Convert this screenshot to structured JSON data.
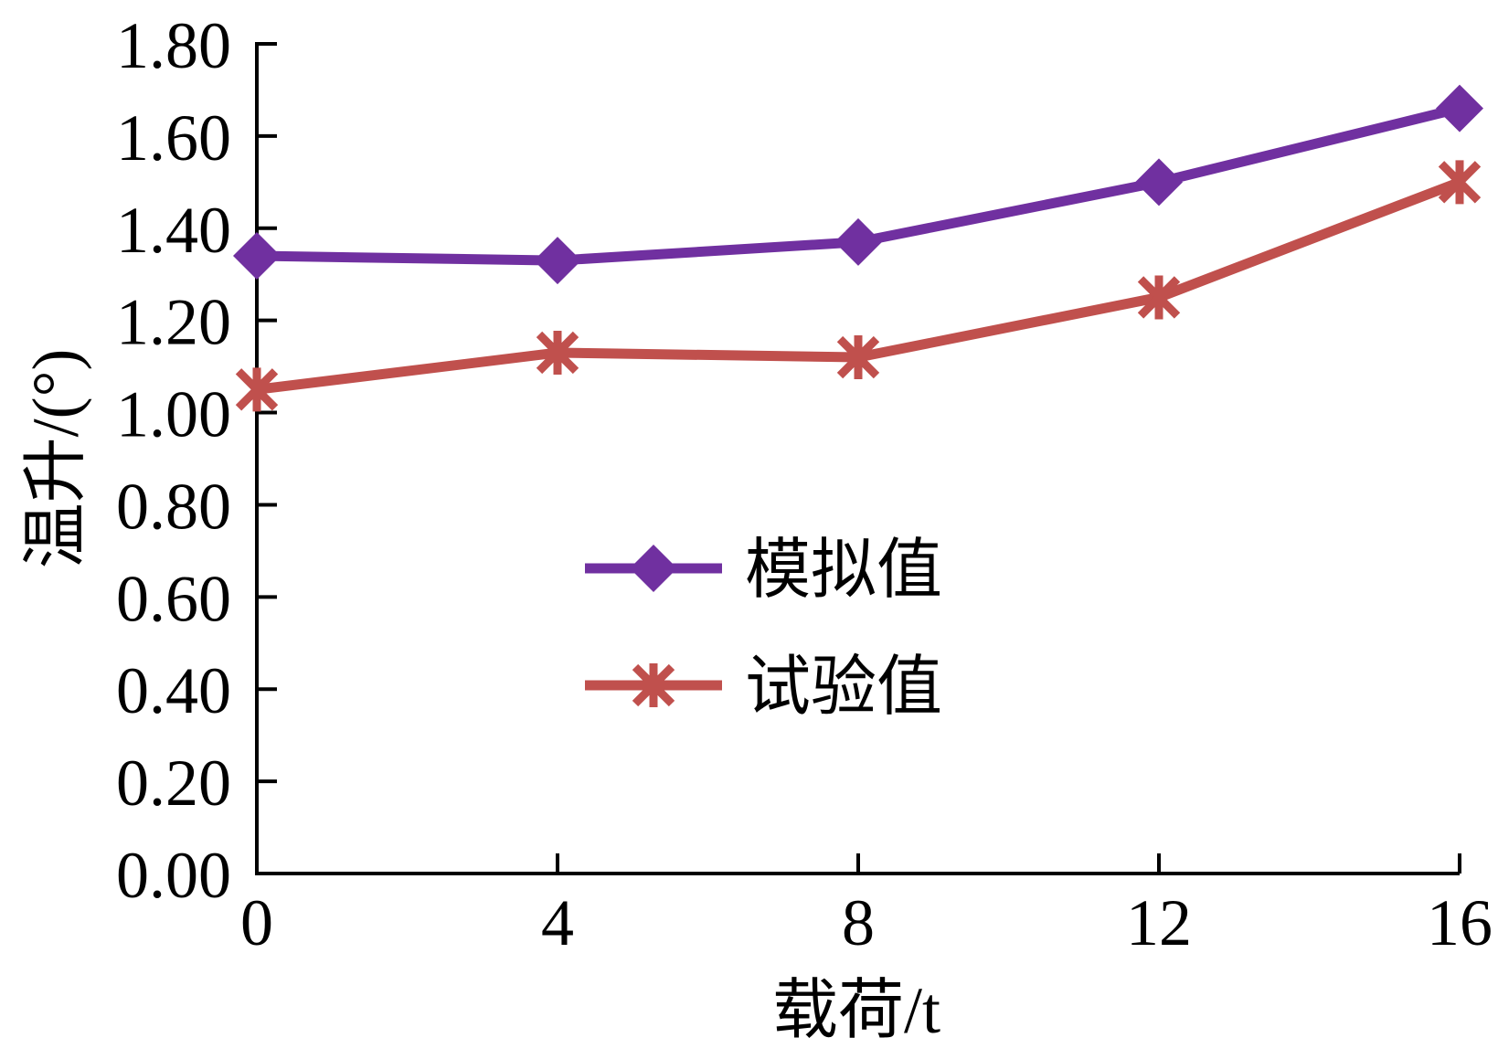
{
  "chart_data": {
    "type": "line",
    "xlabel": "载荷/t",
    "ylabel": "温升/(°)",
    "x": [
      0,
      4,
      8,
      12,
      16
    ],
    "x_ticks": [
      "0",
      "4",
      "8",
      "12",
      "16"
    ],
    "y_ticks": [
      "0.00",
      "0.20",
      "0.40",
      "0.60",
      "0.80",
      "1.00",
      "1.20",
      "1.40",
      "1.60",
      "1.80"
    ],
    "xlim": [
      0,
      16
    ],
    "ylim": [
      0,
      1.8
    ],
    "grid": false,
    "legend_position": "center",
    "series": [
      {
        "name": "模拟值",
        "values": [
          1.34,
          1.33,
          1.37,
          1.5,
          1.66
        ],
        "color": "#7030A0",
        "marker": "diamond"
      },
      {
        "name": "试验值",
        "values": [
          1.05,
          1.13,
          1.12,
          1.25,
          1.5
        ],
        "color": "#C0504D",
        "marker": "asterisk"
      }
    ]
  }
}
